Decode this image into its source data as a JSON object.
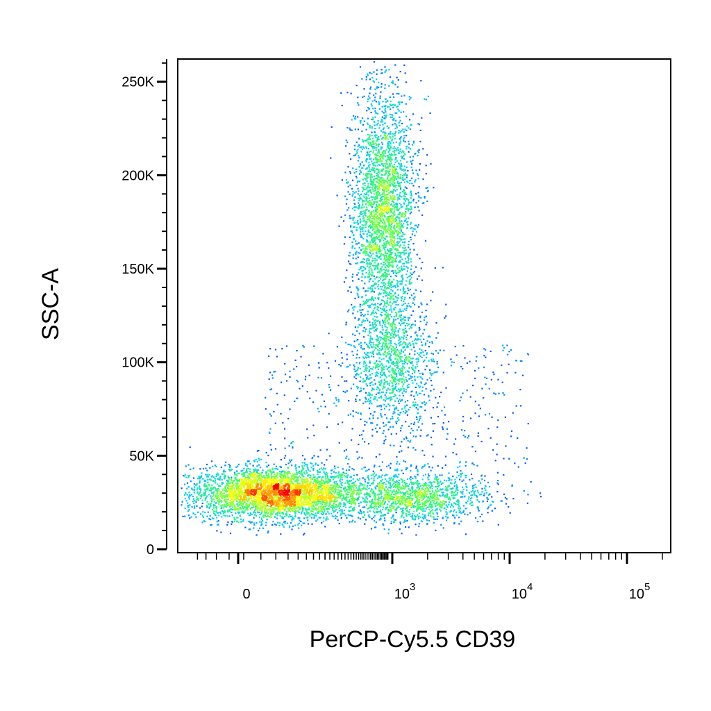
{
  "chart_data": {
    "type": "scatter",
    "style": "density",
    "xlabel": "PerCP-Cy5.5 CD39",
    "ylabel": "SSC-A",
    "x_scale": "biexponential",
    "x_range": [
      -300,
      150000
    ],
    "ylim": [
      0,
      262144
    ],
    "x_ticks": [
      {
        "value": 0,
        "label": "0"
      },
      {
        "value": 1000,
        "label": "10",
        "exp": "3"
      },
      {
        "value": 10000,
        "label": "10",
        "exp": "4"
      },
      {
        "value": 100000,
        "label": "10",
        "exp": "5"
      }
    ],
    "y_ticks": [
      {
        "value": 0,
        "label": "0"
      },
      {
        "value": 50000,
        "label": "50K"
      },
      {
        "value": 100000,
        "label": "100K"
      },
      {
        "value": 150000,
        "label": "150K"
      },
      {
        "value": 200000,
        "label": "200K"
      },
      {
        "value": 250000,
        "label": "250K"
      }
    ],
    "populations": [
      {
        "center": [
          50,
          30000
        ],
        "x_spread": [
          -250,
          300
        ],
        "y_sd": 7000,
        "weight": 0.42
      },
      {
        "center": [
          800,
          180000
        ],
        "x_spread": [
          400,
          1600
        ],
        "y_sd": 30000,
        "weight": 0.32
      },
      {
        "center": [
          1000,
          100000
        ],
        "x_spread": [
          400,
          2500
        ],
        "y_sd": 18000,
        "weight": 0.12
      },
      {
        "center": [
          1500,
          28000
        ],
        "x_spread": [
          300,
          6000
        ],
        "y_sd": 7000,
        "weight": 0.14
      }
    ],
    "colors": {
      "low": "#0000ff",
      "mid_low": "#00c8ff",
      "mid": "#3cff64",
      "mid_high": "#ffff00",
      "high": "#ff0000"
    },
    "grid": false,
    "legend": "none"
  }
}
